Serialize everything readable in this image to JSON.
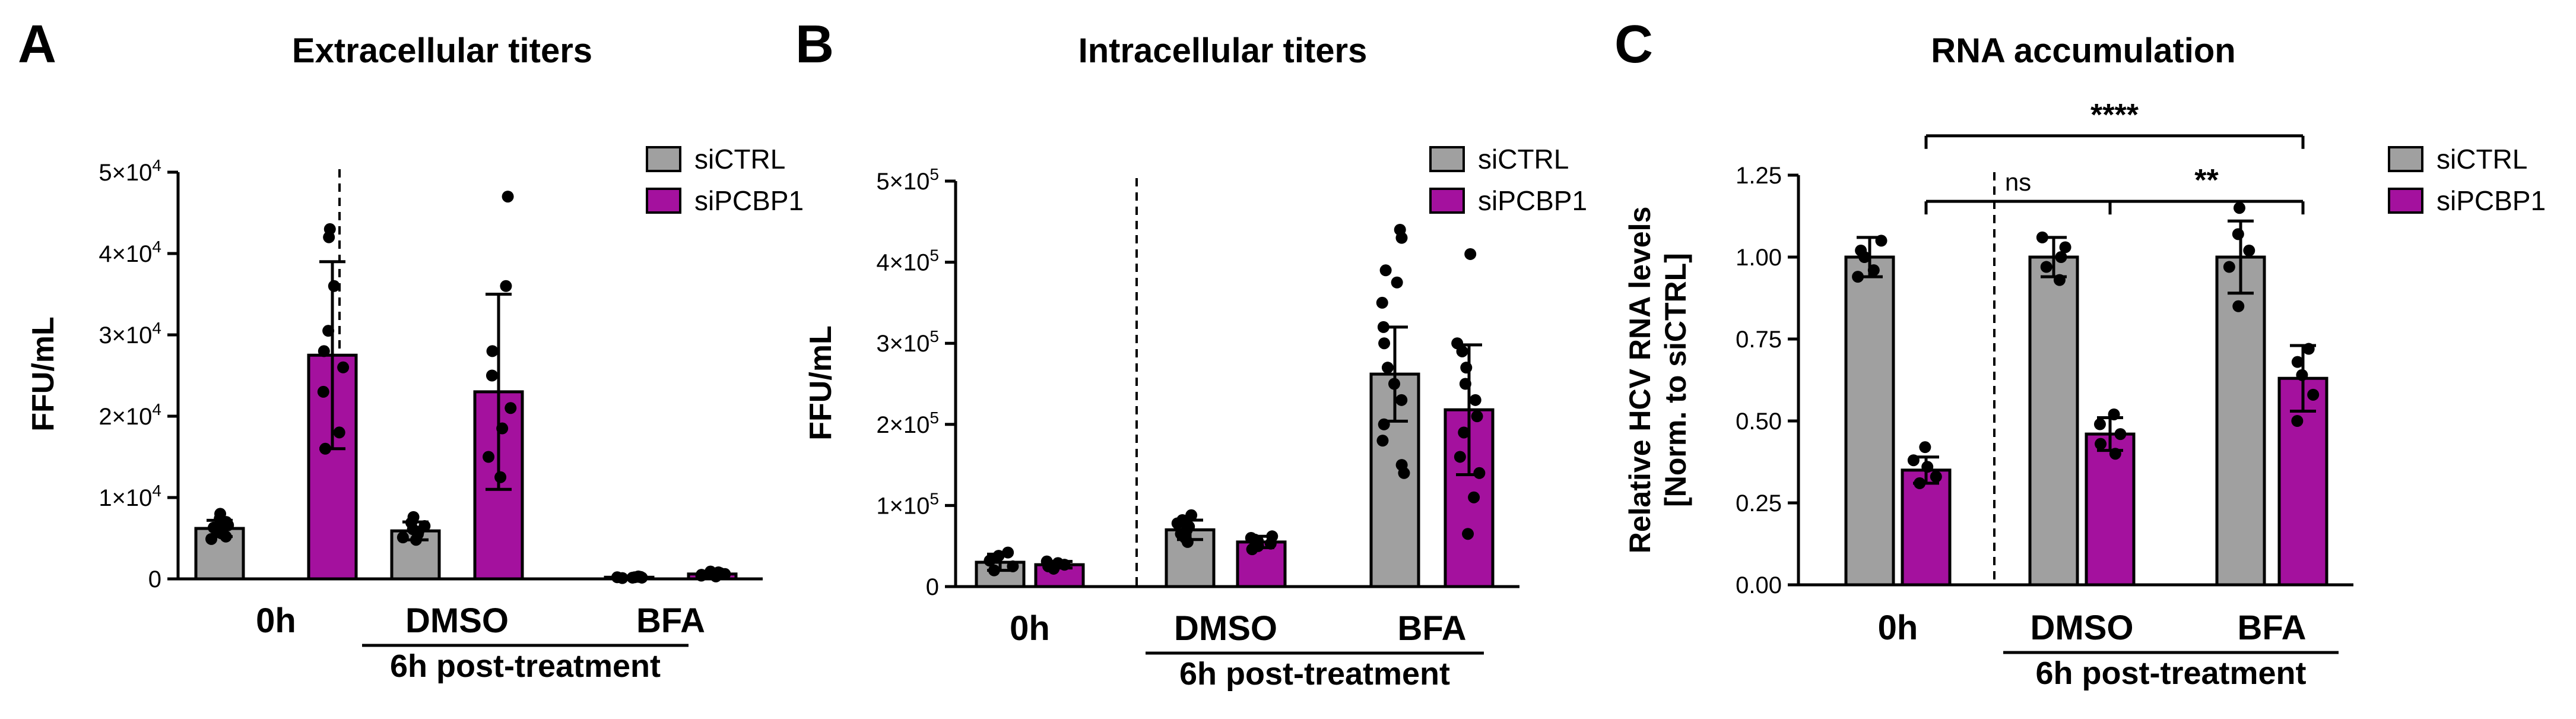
{
  "colors": {
    "ctrl": "#a0a0a0",
    "pcbp": "#a4119e",
    "edge": "#000000",
    "dot": "#000000"
  },
  "chart_data": [
    {
      "panel_letter": "A",
      "type": "bar",
      "title": "Extracellular titers",
      "ylabel": "FFU/mL",
      "xlabel": "",
      "ylim": [
        0,
        50000
      ],
      "ytick_values": [
        0,
        10000,
        20000,
        30000,
        40000,
        50000
      ],
      "ytick_labels": [
        {
          "base": "0",
          "exp": ""
        },
        {
          "base": "1×10",
          "exp": "4"
        },
        {
          "base": "2×10",
          "exp": "4"
        },
        {
          "base": "3×10",
          "exp": "4"
        },
        {
          "base": "4×10",
          "exp": "4"
        },
        {
          "base": "5×10",
          "exp": "4"
        }
      ],
      "categories": [
        "0h",
        "DMSO",
        "BFA"
      ],
      "group_label": "6h post-treatment",
      "legend_position": "top-right",
      "series": [
        {
          "name": "siCTRL",
          "key": "ctrl",
          "values": [
            6200,
            5900,
            200
          ],
          "errors": [
            1000,
            1100,
            150
          ],
          "points": [
            [
              4900,
              5200,
              5600,
              6000,
              6300,
              6600,
              7000,
              7400,
              8000
            ],
            [
              4800,
              5100,
              5500,
              5800,
              6100,
              6500,
              6900,
              7600
            ],
            [
              100,
              150,
              200,
              250,
              300,
              200,
              150,
              250
            ]
          ]
        },
        {
          "name": "siPCBP1",
          "key": "pcbp",
          "values": [
            27500,
            23000,
            600
          ],
          "errors": [
            11500,
            12000,
            250
          ],
          "points": [
            [
              16000,
              18000,
              23000,
              26000,
              28000,
              30500,
              36000,
              42000,
              43000
            ],
            [
              12500,
              15000,
              18500,
              21000,
              25000,
              28000,
              36000,
              47000
            ],
            [
              300,
              400,
              600,
              700,
              800,
              500,
              900,
              600
            ]
          ]
        }
      ],
      "annotations": []
    },
    {
      "panel_letter": "B",
      "type": "bar",
      "title": "Intracellular titers",
      "ylabel": "FFU/mL",
      "xlabel": "",
      "ylim": [
        0,
        500000
      ],
      "ytick_values": [
        0,
        100000,
        200000,
        300000,
        400000,
        500000
      ],
      "ytick_labels": [
        {
          "base": "0",
          "exp": ""
        },
        {
          "base": "1×10",
          "exp": "5"
        },
        {
          "base": "2×10",
          "exp": "5"
        },
        {
          "base": "3×10",
          "exp": "5"
        },
        {
          "base": "4×10",
          "exp": "5"
        },
        {
          "base": "5×10",
          "exp": "5"
        }
      ],
      "categories": [
        "0h",
        "DMSO",
        "BFA"
      ],
      "group_label": "6h post-treatment",
      "legend_position": "top-right",
      "series": [
        {
          "name": "siCTRL",
          "key": "ctrl",
          "values": [
            30000,
            70000,
            262000
          ],
          "errors": [
            10000,
            12000,
            58000
          ],
          "points": [
            [
              20000,
              25000,
              32000,
              38000,
              42000
            ],
            [
              55000,
              60000,
              65000,
              70000,
              74000,
              78000,
              82000,
              88000
            ],
            [
              140000,
              150000,
              180000,
              200000,
              230000,
              250000,
              270000,
              300000,
              320000,
              350000,
              375000,
              390000,
              430000,
              440000
            ]
          ]
        },
        {
          "name": "siPCBP1",
          "key": "pcbp",
          "values": [
            27000,
            55000,
            218000
          ],
          "errors": [
            4000,
            7000,
            80000
          ],
          "points": [
            [
              22000,
              25000,
              27000,
              29000,
              31000
            ],
            [
              46000,
              50000,
              53000,
              56000,
              58000,
              60000,
              62000
            ],
            [
              65000,
              110000,
              140000,
              160000,
              190000,
              210000,
              230000,
              250000,
              270000,
              290000,
              300000,
              410000
            ]
          ]
        }
      ],
      "annotations": []
    },
    {
      "panel_letter": "C",
      "type": "bar",
      "title": "RNA accumulation",
      "ylabel": "Relative HCV RNA levels",
      "ylabel2": "[Norm. to siCTRL]",
      "xlabel": "",
      "ylim": [
        0,
        1.25
      ],
      "ytick_values": [
        0,
        0.25,
        0.5,
        0.75,
        1.0,
        1.25
      ],
      "ytick_labels": [
        {
          "base": "0.00",
          "exp": ""
        },
        {
          "base": "0.25",
          "exp": ""
        },
        {
          "base": "0.50",
          "exp": ""
        },
        {
          "base": "0.75",
          "exp": ""
        },
        {
          "base": "1.00",
          "exp": ""
        },
        {
          "base": "1.25",
          "exp": ""
        }
      ],
      "categories": [
        "0h",
        "DMSO",
        "BFA"
      ],
      "group_label": "6h post-treatment",
      "legend_position": "top-right",
      "series": [
        {
          "name": "siCTRL",
          "key": "ctrl",
          "values": [
            1.0,
            1.0,
            1.0
          ],
          "errors": [
            0.06,
            0.06,
            0.11
          ],
          "points": [
            [
              0.94,
              0.96,
              1.0,
              1.02,
              1.05
            ],
            [
              0.93,
              0.97,
              1.0,
              1.03,
              1.06
            ],
            [
              0.85,
              0.97,
              1.02,
              1.07,
              1.15
            ]
          ]
        },
        {
          "name": "siPCBP1",
          "key": "pcbp",
          "values": [
            0.35,
            0.46,
            0.63
          ],
          "errors": [
            0.04,
            0.05,
            0.1
          ],
          "points": [
            [
              0.31,
              0.33,
              0.36,
              0.38,
              0.42
            ],
            [
              0.4,
              0.43,
              0.46,
              0.49,
              0.52
            ],
            [
              0.5,
              0.58,
              0.64,
              0.68,
              0.72
            ]
          ]
        }
      ],
      "annotations": [
        {
          "label": "ns",
          "from_category": 0,
          "from_series": 1,
          "to_category": 1,
          "to_series": 1,
          "level": 1.17
        },
        {
          "label": "**",
          "from_category": 1,
          "from_series": 1,
          "to_category": 2,
          "to_series": 1,
          "level": 1.17
        },
        {
          "label": "****",
          "from_category": 0,
          "from_series": 1,
          "to_category": 2,
          "to_series": 1,
          "level": 1.37
        }
      ]
    }
  ]
}
